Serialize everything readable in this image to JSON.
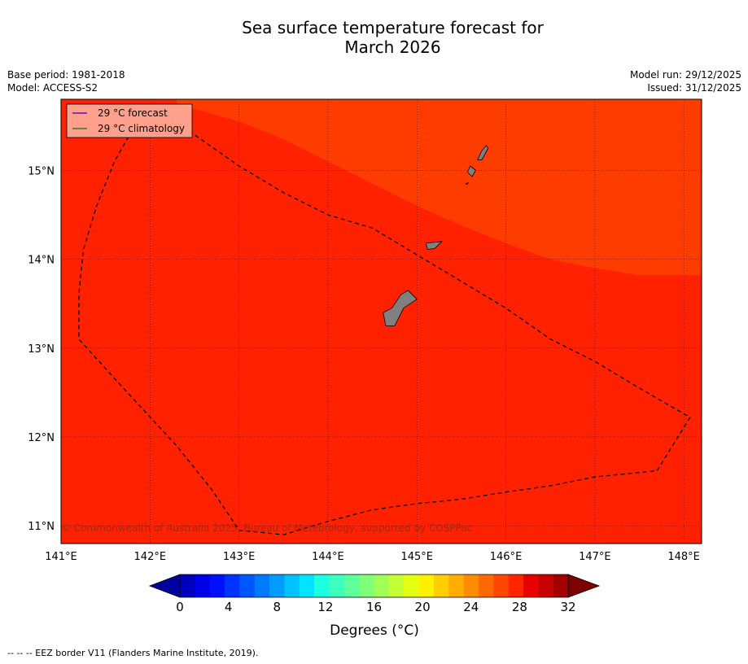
{
  "title": {
    "line1": "Sea surface temperature forecast for",
    "line2": "March 2026"
  },
  "meta": {
    "base_period": "Base period: 1981-2018",
    "model": "Model: ACCESS-S2",
    "model_run": "Model run: 29/12/2025",
    "issued": "Issued: 31/12/2025"
  },
  "map": {
    "lon_range": [
      141.0,
      148.2
    ],
    "lat_range": [
      10.8,
      15.8
    ],
    "lon_ticks": [
      "141°E",
      "142°E",
      "143°E",
      "144°E",
      "145°E",
      "146°E",
      "147°E",
      "148°E"
    ],
    "lat_ticks": [
      "15°N",
      "14°N",
      "13°N",
      "12°N",
      "11°N"
    ],
    "fill_colors": {
      "band_28_29": "#ff2100",
      "band_29_30": "#ff3c00",
      "land": "#808080"
    },
    "warm_zone_boundary": [
      [
        142.3,
        15.75
      ],
      [
        143.0,
        15.55
      ],
      [
        143.5,
        15.35
      ],
      [
        144.0,
        15.1
      ],
      [
        144.5,
        14.85
      ],
      [
        145.0,
        14.6
      ],
      [
        145.5,
        14.38
      ],
      [
        146.0,
        14.18
      ],
      [
        146.5,
        14.0
      ],
      [
        147.0,
        13.9
      ],
      [
        147.5,
        13.82
      ],
      [
        148.2,
        13.82
      ]
    ],
    "eez_border": [
      [
        141.8,
        15.45
      ],
      [
        141.6,
        15.1
      ],
      [
        141.4,
        14.6
      ],
      [
        141.25,
        14.1
      ],
      [
        141.2,
        13.6
      ],
      [
        141.2,
        13.1
      ],
      [
        141.7,
        12.55
      ],
      [
        142.3,
        11.9
      ],
      [
        142.7,
        11.4
      ],
      [
        143.0,
        10.95
      ],
      [
        143.5,
        10.9
      ],
      [
        144.0,
        11.05
      ],
      [
        144.5,
        11.18
      ],
      [
        145.0,
        11.25
      ],
      [
        145.5,
        11.3
      ],
      [
        146.0,
        11.38
      ],
      [
        146.5,
        11.45
      ],
      [
        147.0,
        11.55
      ],
      [
        147.7,
        11.62
      ],
      [
        148.07,
        12.22
      ],
      [
        147.5,
        12.55
      ],
      [
        147.0,
        12.85
      ],
      [
        146.5,
        13.1
      ],
      [
        146.0,
        13.45
      ],
      [
        145.5,
        13.75
      ],
      [
        145.0,
        14.05
      ],
      [
        144.5,
        14.35
      ],
      [
        144.0,
        14.5
      ],
      [
        143.5,
        14.75
      ],
      [
        143.0,
        15.05
      ],
      [
        142.5,
        15.4
      ],
      [
        142.2,
        15.65
      ],
      [
        141.85,
        15.5
      ]
    ],
    "islands": [
      {
        "name": "Guam",
        "coords": [
          [
            144.9,
            13.65
          ],
          [
            145.0,
            13.55
          ],
          [
            144.85,
            13.45
          ],
          [
            144.75,
            13.25
          ],
          [
            144.65,
            13.25
          ],
          [
            144.62,
            13.4
          ],
          [
            144.72,
            13.45
          ],
          [
            144.82,
            13.6
          ]
        ]
      },
      {
        "name": "Rota",
        "coords": [
          [
            145.1,
            14.18
          ],
          [
            145.28,
            14.2
          ],
          [
            145.2,
            14.12
          ],
          [
            145.12,
            14.11
          ]
        ]
      },
      {
        "name": "Tinian",
        "coords": [
          [
            145.6,
            15.05
          ],
          [
            145.66,
            15.0
          ],
          [
            145.62,
            14.93
          ],
          [
            145.57,
            14.98
          ]
        ]
      },
      {
        "name": "Saipan",
        "coords": [
          [
            145.78,
            15.28
          ],
          [
            145.73,
            15.22
          ],
          [
            145.68,
            15.12
          ],
          [
            145.73,
            15.12
          ],
          [
            145.8,
            15.25
          ]
        ]
      },
      {
        "name": "Aguijan",
        "coords": [
          [
            145.55,
            14.85
          ],
          [
            145.58,
            14.86
          ],
          [
            145.56,
            14.84
          ]
        ]
      }
    ],
    "legend": {
      "forecast_label": "29 °C  forecast",
      "forecast_color": "#6a0dad",
      "climatology_label": "29 °C  climatology",
      "climatology_color": "#2e7d32",
      "background": "#ffa08c"
    },
    "copyright": "© Commonwealth of Australia 2025, Bureau of Meteorology, supported by COSPPac"
  },
  "colorbar": {
    "label": "Degrees (°C)",
    "tick_labels": [
      "0",
      "4",
      "8",
      "12",
      "16",
      "20",
      "24",
      "28",
      "32"
    ],
    "colors": [
      "#0000bd",
      "#0000e8",
      "#0010ff",
      "#0033ff",
      "#0057ff",
      "#007aff",
      "#009dff",
      "#00c2ff",
      "#00e5ff",
      "#1cffe1",
      "#3dffbd",
      "#5eff9b",
      "#80ff78",
      "#a2ff56",
      "#c3ff34",
      "#e5ff12",
      "#fff000",
      "#ffce00",
      "#ffad00",
      "#ff8b00",
      "#ff6900",
      "#ff4700",
      "#ff2500",
      "#e80000",
      "#c80000",
      "#a30000"
    ],
    "low_extension_color": "#00009f",
    "high_extension_color": "#7f0000"
  },
  "footnote": "--  --  -- EEZ border V11 (Flanders Marine Institute, 2019)."
}
